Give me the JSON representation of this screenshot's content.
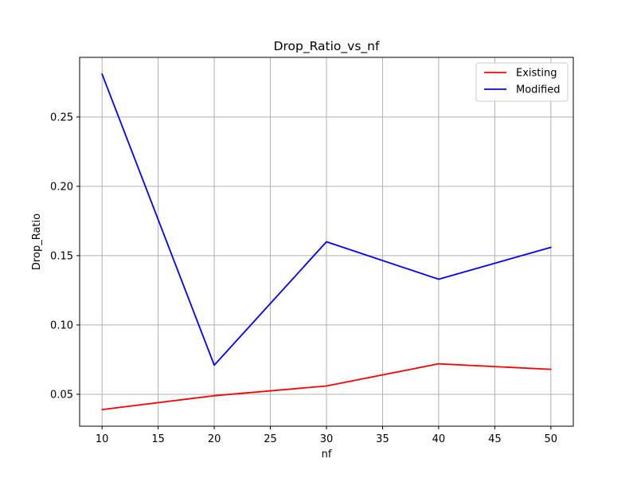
{
  "chart_data": {
    "type": "line",
    "title": "Drop_Ratio_vs_nf",
    "xlabel": "nf",
    "ylabel": "Drop_Ratio",
    "x": [
      10,
      20,
      30,
      40,
      50
    ],
    "series": [
      {
        "name": "Existing",
        "color": "#ff0000",
        "values": [
          0.039,
          0.049,
          0.056,
          0.072,
          0.068
        ]
      },
      {
        "name": "Modified",
        "color": "#0000ff",
        "values": [
          0.281,
          0.071,
          0.16,
          0.133,
          0.156
        ]
      }
    ],
    "xlim": [
      8,
      52
    ],
    "ylim": [
      0.027,
      0.293
    ],
    "xticks": [
      10,
      15,
      20,
      25,
      30,
      35,
      40,
      45,
      50
    ],
    "xtick_labels": [
      "10",
      "15",
      "20",
      "25",
      "30",
      "35",
      "40",
      "45",
      "50"
    ],
    "yticks": [
      0.05,
      0.1,
      0.15,
      0.2,
      0.25
    ],
    "ytick_labels": [
      "0.05",
      "0.10",
      "0.15",
      "0.20",
      "0.25"
    ],
    "grid": true,
    "legend": "top-right"
  }
}
